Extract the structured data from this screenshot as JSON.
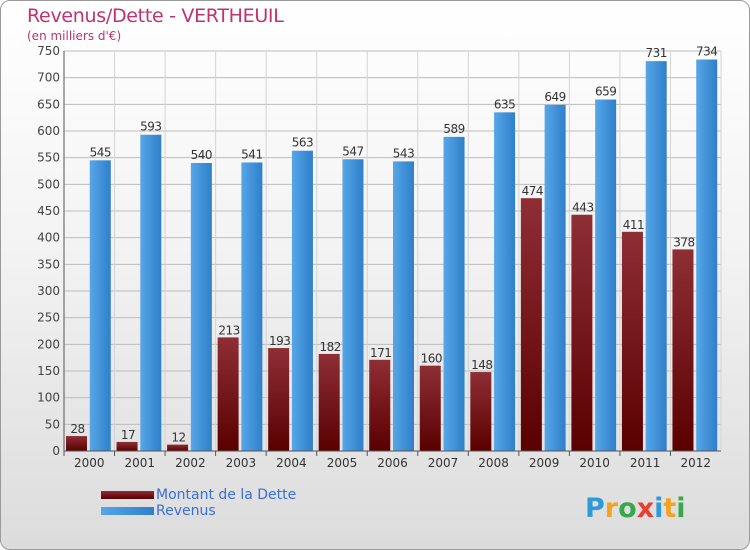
{
  "header": {
    "title": "Revenus/Dette - VERTHEUIL",
    "subtitle": "(en milliers d'€)"
  },
  "colors": {
    "title": "#c0336e",
    "dette_top": "#8e2e35",
    "dette_bottom": "#5a0000",
    "revenus_left": "#56a6e8",
    "revenus_right": "#2f7fca",
    "legend_text": "#3a6fd6"
  },
  "chart_data": {
    "type": "bar",
    "categories": [
      "2000",
      "2001",
      "2002",
      "2003",
      "2004",
      "2005",
      "2006",
      "2007",
      "2008",
      "2009",
      "2010",
      "2011",
      "2012"
    ],
    "series": [
      {
        "name": "Montant de la Dette",
        "values": [
          28,
          17,
          12,
          213,
          193,
          182,
          171,
          160,
          148,
          474,
          443,
          411,
          378
        ]
      },
      {
        "name": "Revenus",
        "values": [
          545,
          593,
          540,
          541,
          563,
          547,
          543,
          589,
          635,
          649,
          659,
          731,
          734
        ]
      }
    ],
    "yticks": [
      0,
      50,
      100,
      150,
      200,
      250,
      300,
      350,
      400,
      450,
      500,
      550,
      600,
      650,
      700,
      750
    ],
    "ylim": [
      0,
      750
    ],
    "grid": true,
    "legend_position": "bottom-left"
  },
  "legend": {
    "items": [
      {
        "label": "Montant de la Dette"
      },
      {
        "label": "Revenus"
      }
    ]
  },
  "logo": {
    "text": "Proxiti"
  }
}
